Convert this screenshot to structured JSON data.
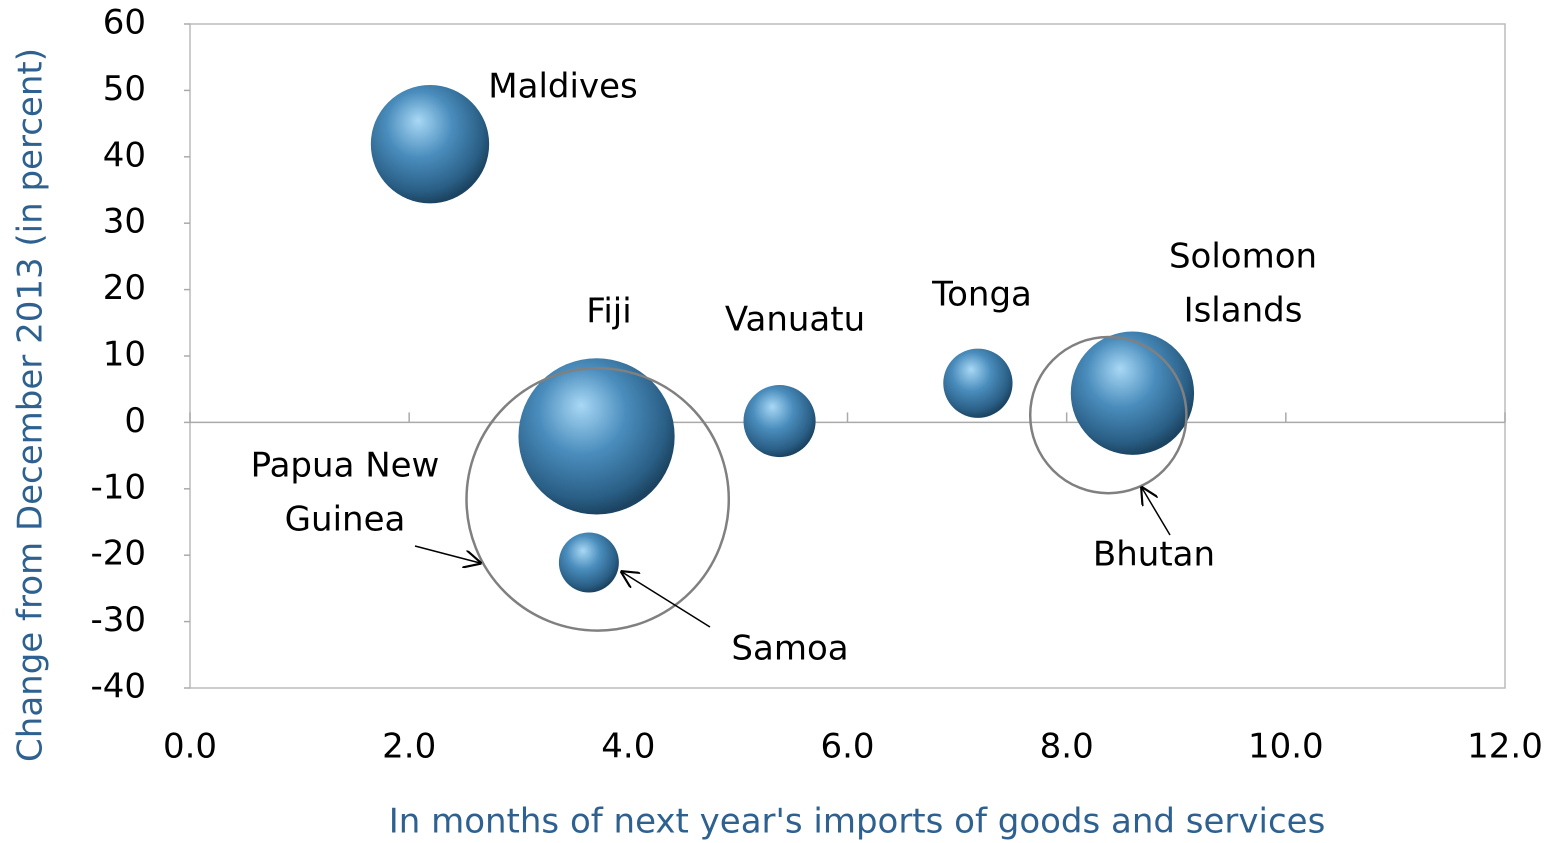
{
  "chart_data": {
    "type": "bubble",
    "x_label": "In months of next year's imports of goods and services",
    "y_label": "Change from December 2013 (in percent)",
    "xlim": [
      0,
      12
    ],
    "ylim": [
      -40,
      60
    ],
    "xticks": [
      {
        "value": 0,
        "label": "0.0"
      },
      {
        "value": 2,
        "label": "2.0"
      },
      {
        "value": 4,
        "label": "4.0"
      },
      {
        "value": 6,
        "label": "6.0"
      },
      {
        "value": 8,
        "label": "8.0"
      },
      {
        "value": 10,
        "label": "10.0"
      },
      {
        "value": 12,
        "label": "12.0"
      }
    ],
    "yticks": [
      -40,
      -30,
      -20,
      -10,
      0,
      10,
      20,
      30,
      40,
      50,
      60
    ],
    "series": [
      {
        "color": "#3c7fae",
        "filled": true,
        "labels": [
          "Maldives",
          "Fiji",
          "Samoa",
          "Vanuatu",
          "Tonga",
          [
            "Solomon",
            "Islands"
          ]
        ],
        "x": [
          2.19,
          3.71,
          3.64,
          5.38,
          7.19,
          8.6
        ],
        "values": [
          41.9,
          -2.1,
          -21.1,
          0.2,
          5.9,
          4.4
        ],
        "sizes": [
          35,
          61,
          9,
          13,
          12,
          38
        ]
      },
      {
        "color": "#808080",
        "filled": false,
        "labels": [
          [
            "Papua New",
            "Guinea"
          ],
          "Bhutan"
        ],
        "x": [
          3.72,
          8.38
        ],
        "values": [
          -11.6,
          1.1
        ],
        "sizes": [
          172,
          61
        ]
      }
    ]
  }
}
